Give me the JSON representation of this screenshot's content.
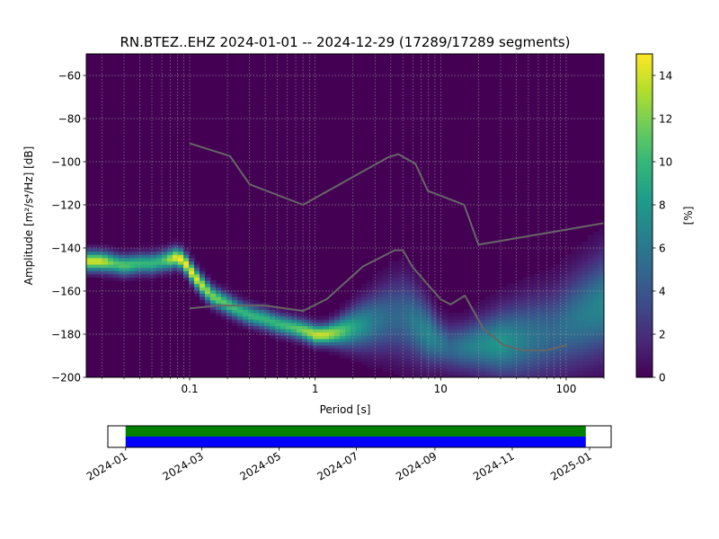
{
  "chart_data": [
    {
      "type": "heatmap",
      "title": "RN.BTEZ..EHZ   2024-01-01 -- 2024-12-29  (17289/17289 segments)",
      "xlabel": "Period [s]",
      "ylabel": "Amplitude [m²/s⁴/Hz] [dB]",
      "x_scale": "log",
      "xlim": [
        0.015,
        200
      ],
      "ylim": [
        -200,
        -50
      ],
      "x_ticks": [
        {
          "value": 0.1,
          "label": "0.1"
        },
        {
          "value": 1,
          "label": "1"
        },
        {
          "value": 10,
          "label": "10"
        },
        {
          "value": 100,
          "label": "100"
        }
      ],
      "y_ticks": [
        {
          "value": -60,
          "label": "−60"
        },
        {
          "value": -80,
          "label": "−80"
        },
        {
          "value": -100,
          "label": "−100"
        },
        {
          "value": -120,
          "label": "−120"
        },
        {
          "value": -140,
          "label": "−140"
        },
        {
          "value": -160,
          "label": "−160"
        },
        {
          "value": -180,
          "label": "−180"
        },
        {
          "value": -200,
          "label": "−200"
        }
      ],
      "grid": true,
      "colormap": "viridis",
      "colorbar": {
        "label": "[%]",
        "range": [
          0,
          15
        ],
        "ticks": [
          {
            "value": 0,
            "label": "0"
          },
          {
            "value": 2,
            "label": "2"
          },
          {
            "value": 4,
            "label": "4"
          },
          {
            "value": 6,
            "label": "6"
          },
          {
            "value": 8,
            "label": "8"
          },
          {
            "value": 10,
            "label": "10"
          },
          {
            "value": 12,
            "label": "12"
          },
          {
            "value": 14,
            "label": "14"
          }
        ]
      },
      "density_mode": {
        "period": [
          0.015,
          0.02,
          0.025,
          0.03,
          0.04,
          0.05,
          0.06,
          0.07,
          0.08,
          0.09,
          0.1,
          0.12,
          0.15,
          0.2,
          0.25,
          0.3,
          0.4,
          0.5,
          0.7,
          0.9,
          1,
          1.2,
          1.5,
          2,
          3,
          4,
          5,
          6,
          8,
          10,
          12,
          15,
          20,
          30,
          50,
          80,
          120,
          200
        ],
        "amplitude_db": [
          -146,
          -146,
          -147,
          -148,
          -147,
          -147,
          -146,
          -145,
          -144,
          -146,
          -150,
          -156,
          -162,
          -166,
          -169,
          -171,
          -173,
          -175,
          -177,
          -179,
          -180,
          -180,
          -179,
          -177,
          -174,
          -172,
          -172,
          -174,
          -180,
          -184,
          -186,
          -186,
          -185,
          -184,
          -182,
          -179,
          -173,
          -166
        ],
        "peak_percent": [
          14,
          14,
          11,
          11,
          10,
          10,
          10,
          13,
          15,
          15,
          15,
          14,
          12,
          11,
          10,
          10,
          10,
          10,
          11,
          13,
          14,
          14,
          12,
          9,
          6,
          5,
          5,
          6,
          7,
          6,
          5,
          6,
          7,
          8,
          6,
          5,
          6,
          7
        ],
        "spread_db": [
          3,
          3,
          3,
          3,
          3,
          3,
          3,
          3,
          3,
          3,
          3,
          3,
          3,
          3,
          3,
          3,
          3,
          3,
          3,
          3,
          3,
          3,
          4,
          6,
          9,
          11,
          12,
          11,
          9,
          7,
          7,
          7,
          8,
          10,
          12,
          13,
          14,
          15
        ]
      },
      "noise_models": [
        {
          "period": [
            0.1,
            0.21,
            0.3,
            0.8,
            3.8,
            4.6,
            6.3,
            7.9,
            15.4,
            20,
            354.8
          ],
          "amplitude_db": [
            -91.5,
            -97.4,
            -110.5,
            -120,
            -98,
            -96.5,
            -101,
            -113.5,
            -120,
            -138.5,
            -126
          ]
        },
        {
          "period": [
            0.1,
            0.17,
            0.4,
            0.8,
            1.24,
            2.4,
            4.3,
            5,
            6,
            10,
            12,
            15.6,
            21.9,
            31.6,
            45,
            70,
            101
          ],
          "amplitude_db": [
            -168,
            -166.7,
            -166.7,
            -169.2,
            -163.7,
            -148.6,
            -141.1,
            -141.1,
            -149,
            -163.8,
            -166.2,
            -162.1,
            -177.5,
            -185,
            -187.5,
            -187.5,
            -185
          ]
        }
      ]
    },
    {
      "type": "timeline",
      "x_ticks": [
        {
          "value": "2024-01",
          "label": "2024-01"
        },
        {
          "value": "2024-03",
          "label": "2024-03"
        },
        {
          "value": "2024-05",
          "label": "2024-05"
        },
        {
          "value": "2024-07",
          "label": "2024-07"
        },
        {
          "value": "2024-09",
          "label": "2024-09"
        },
        {
          "value": "2024-11",
          "label": "2024-11"
        },
        {
          "value": "2025-01",
          "label": "2025-01"
        }
      ],
      "xlim": [
        "2023-12-18",
        "2025-01-18"
      ],
      "bars": [
        {
          "start": "2024-01-01",
          "end": "2024-12-29",
          "color": "#008000"
        },
        {
          "start": "2024-01-01",
          "end": "2024-12-29",
          "color": "#0000ff"
        }
      ]
    }
  ]
}
